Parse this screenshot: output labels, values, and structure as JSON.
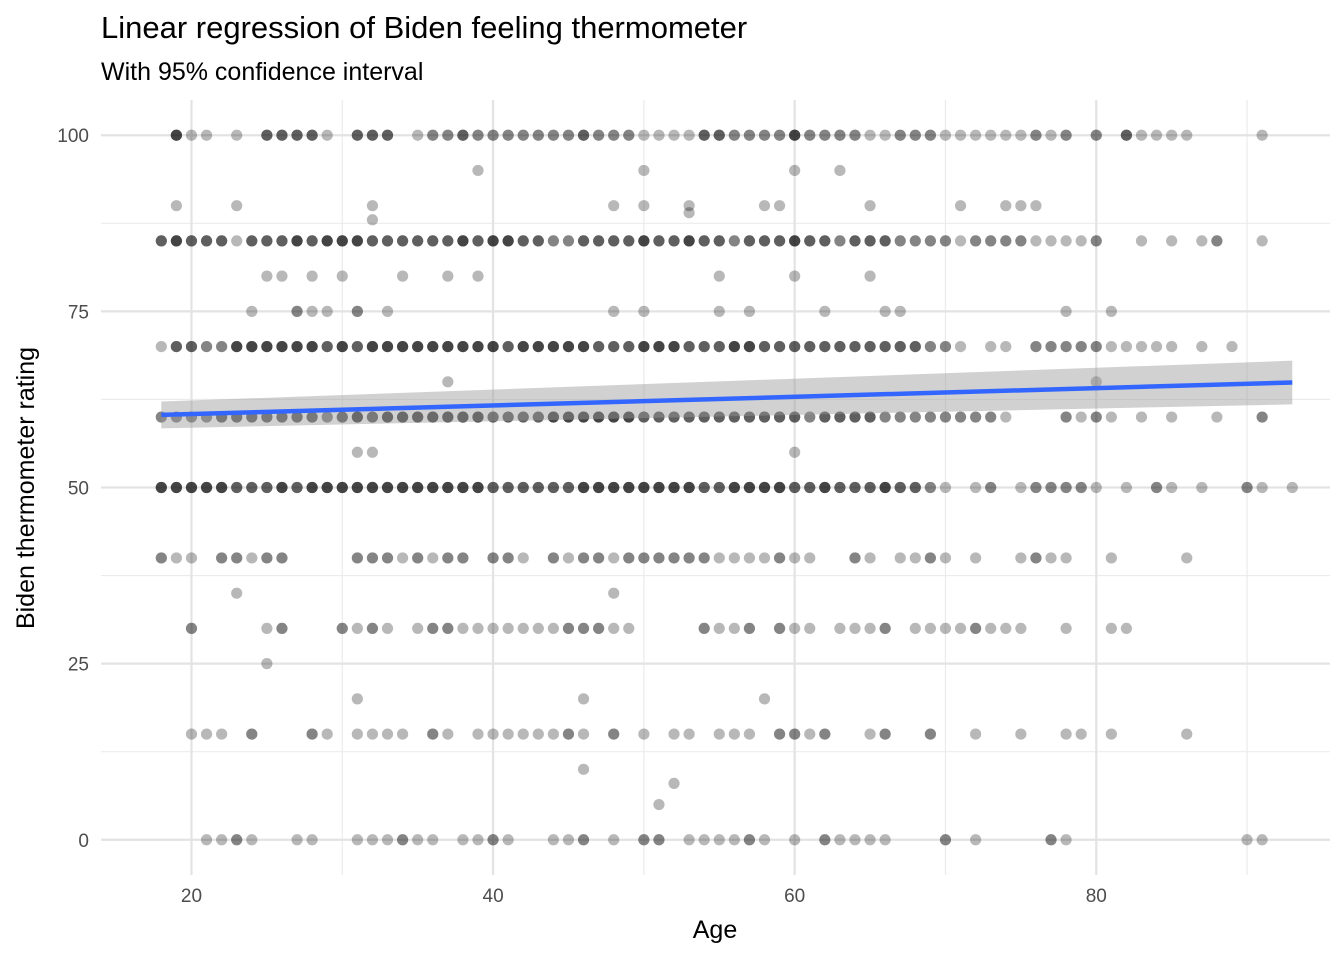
{
  "chart_data": {
    "type": "scatter",
    "title": "Linear regression of Biden feeling thermometer",
    "subtitle": "With 95% confidence interval",
    "xlabel": "Age",
    "ylabel": "Biden thermometer rating",
    "xlim": [
      14,
      95.5
    ],
    "ylim": [
      -5,
      105
    ],
    "x_ticks": [
      20,
      40,
      60,
      80
    ],
    "y_ticks": [
      0,
      25,
      50,
      75,
      100
    ],
    "grid": true,
    "point_color": "#000000",
    "point_alpha": 0.28,
    "points": [
      {
        "y": 100,
        "x": [
          19,
          19,
          19,
          19,
          20,
          21,
          23,
          25,
          25,
          25,
          26,
          26,
          26,
          27,
          27,
          27,
          28,
          28,
          28,
          29,
          31,
          31,
          31,
          32,
          32,
          32,
          33,
          33,
          33,
          35,
          36,
          36,
          37,
          37,
          38,
          38,
          38,
          39,
          39,
          40,
          40,
          41,
          41,
          42,
          42,
          43,
          43,
          44,
          44,
          45,
          45,
          46,
          46,
          46,
          47,
          47,
          48,
          48,
          49,
          49,
          50,
          51,
          52,
          53,
          54,
          54,
          54,
          55,
          55,
          55,
          56,
          56,
          57,
          57,
          58,
          58,
          59,
          59,
          60,
          60,
          60,
          60,
          61,
          61,
          62,
          62,
          63,
          63,
          64,
          64,
          65,
          66,
          67,
          67,
          68,
          68,
          69,
          69,
          70,
          71,
          72,
          73,
          74,
          75,
          76,
          76,
          77,
          78,
          78,
          80,
          80,
          82,
          82,
          82,
          83,
          84,
          85,
          86,
          91
        ]
      },
      {
        "y": 95,
        "x": [
          39,
          50,
          60,
          63
        ]
      },
      {
        "y": 90,
        "x": [
          19,
          23,
          32,
          48,
          50,
          53,
          58,
          59,
          65,
          71,
          74,
          75,
          76
        ]
      },
      {
        "y": 89,
        "x": [
          53
        ]
      },
      {
        "y": 88,
        "x": [
          32
        ]
      },
      {
        "y": 85,
        "x": [
          18,
          18,
          18,
          19,
          19,
          19,
          19,
          20,
          20,
          20,
          21,
          21,
          21,
          22,
          22,
          22,
          23,
          24,
          24,
          24,
          25,
          25,
          25,
          26,
          26,
          26,
          27,
          27,
          27,
          27,
          28,
          28,
          28,
          29,
          29,
          29,
          29,
          30,
          30,
          30,
          30,
          31,
          31,
          31,
          31,
          32,
          32,
          32,
          33,
          33,
          33,
          34,
          34,
          34,
          35,
          35,
          35,
          36,
          36,
          36,
          37,
          37,
          37,
          38,
          38,
          38,
          38,
          39,
          39,
          39,
          40,
          40,
          40,
          40,
          41,
          41,
          41,
          41,
          42,
          42,
          42,
          43,
          43,
          43,
          44,
          44,
          45,
          45,
          46,
          46,
          46,
          47,
          47,
          47,
          48,
          48,
          48,
          49,
          49,
          49,
          50,
          50,
          50,
          50,
          51,
          51,
          51,
          52,
          52,
          52,
          53,
          53,
          53,
          53,
          54,
          54,
          54,
          55,
          55,
          55,
          56,
          56,
          57,
          57,
          57,
          58,
          58,
          58,
          59,
          59,
          59,
          60,
          60,
          60,
          60,
          61,
          61,
          61,
          62,
          62,
          62,
          63,
          63,
          64,
          64,
          64,
          65,
          65,
          65,
          66,
          66,
          66,
          67,
          67,
          68,
          68,
          69,
          69,
          70,
          70,
          71,
          72,
          72,
          73,
          73,
          74,
          74,
          75,
          75,
          76,
          77,
          78,
          79,
          80,
          80,
          83,
          85,
          87,
          88,
          88,
          91
        ]
      },
      {
        "y": 80,
        "x": [
          25,
          26,
          28,
          30,
          34,
          37,
          39,
          55,
          60,
          65
        ]
      },
      {
        "y": 75,
        "x": [
          24,
          27,
          27,
          28,
          29,
          31,
          31,
          33,
          48,
          50,
          55,
          57,
          62,
          66,
          67,
          78,
          81
        ]
      },
      {
        "y": 70,
        "x": [
          18,
          19,
          19,
          19,
          20,
          20,
          20,
          21,
          21,
          22,
          22,
          23,
          23,
          23,
          23,
          24,
          24,
          24,
          24,
          25,
          25,
          25,
          25,
          26,
          26,
          26,
          26,
          27,
          27,
          27,
          27,
          28,
          28,
          28,
          28,
          29,
          29,
          29,
          30,
          30,
          30,
          30,
          31,
          31,
          31,
          32,
          32,
          32,
          32,
          33,
          33,
          33,
          33,
          34,
          34,
          34,
          34,
          35,
          35,
          35,
          35,
          36,
          36,
          36,
          36,
          37,
          37,
          37,
          37,
          38,
          38,
          38,
          38,
          39,
          39,
          39,
          39,
          40,
          40,
          40,
          40,
          41,
          41,
          41,
          42,
          42,
          42,
          42,
          43,
          43,
          43,
          43,
          44,
          44,
          44,
          44,
          45,
          45,
          45,
          45,
          46,
          46,
          46,
          46,
          47,
          47,
          47,
          48,
          48,
          48,
          49,
          49,
          49,
          50,
          50,
          50,
          50,
          51,
          51,
          51,
          51,
          52,
          52,
          52,
          52,
          53,
          53,
          53,
          54,
          54,
          54,
          55,
          55,
          55,
          56,
          56,
          56,
          56,
          57,
          57,
          57,
          57,
          58,
          58,
          58,
          59,
          59,
          59,
          60,
          60,
          60,
          61,
          61,
          61,
          62,
          62,
          62,
          63,
          63,
          63,
          64,
          64,
          64,
          65,
          65,
          65,
          66,
          66,
          66,
          67,
          67,
          67,
          68,
          68,
          68,
          69,
          69,
          70,
          70,
          71,
          73,
          74,
          76,
          76,
          77,
          77,
          78,
          78,
          79,
          79,
          80,
          80,
          81,
          82,
          83,
          84,
          85,
          87,
          89
        ]
      },
      {
        "y": 65,
        "x": [
          37,
          80
        ]
      },
      {
        "y": 60,
        "x": [
          18,
          18,
          19,
          19,
          20,
          20,
          21,
          21,
          22,
          22,
          22,
          23,
          23,
          23,
          24,
          24,
          24,
          25,
          25,
          25,
          26,
          26,
          26,
          27,
          27,
          27,
          28,
          28,
          28,
          29,
          29,
          30,
          30,
          30,
          31,
          31,
          31,
          31,
          32,
          32,
          32,
          33,
          33,
          33,
          33,
          34,
          34,
          34,
          34,
          35,
          35,
          35,
          35,
          36,
          36,
          36,
          36,
          37,
          37,
          37,
          37,
          38,
          38,
          38,
          38,
          39,
          39,
          39,
          39,
          40,
          40,
          40,
          41,
          41,
          41,
          42,
          42,
          42,
          43,
          43,
          43,
          44,
          44,
          44,
          44,
          45,
          45,
          45,
          45,
          46,
          46,
          46,
          46,
          47,
          47,
          47,
          47,
          48,
          48,
          48,
          48,
          49,
          49,
          49,
          49,
          50,
          50,
          50,
          51,
          51,
          51,
          52,
          52,
          52,
          53,
          53,
          53,
          54,
          54,
          54,
          55,
          55,
          55,
          56,
          56,
          56,
          57,
          57,
          57,
          58,
          58,
          58,
          59,
          59,
          59,
          60,
          60,
          60,
          61,
          61,
          62,
          62,
          62,
          63,
          63,
          63,
          64,
          64,
          64,
          65,
          65,
          65,
          66,
          66,
          67,
          67,
          68,
          68,
          69,
          69,
          70,
          70,
          71,
          71,
          72,
          72,
          73,
          73,
          74,
          78,
          78,
          79,
          80,
          80,
          81,
          83,
          85,
          88,
          91,
          91
        ]
      },
      {
        "y": 55,
        "x": [
          31,
          32,
          60
        ]
      },
      {
        "y": 50,
        "x": [
          18,
          18,
          18,
          18,
          19,
          19,
          19,
          19,
          20,
          20,
          20,
          20,
          21,
          21,
          21,
          21,
          22,
          22,
          22,
          22,
          23,
          23,
          23,
          24,
          24,
          24,
          25,
          25,
          25,
          26,
          26,
          26,
          26,
          27,
          27,
          27,
          28,
          28,
          28,
          28,
          29,
          29,
          29,
          29,
          30,
          30,
          30,
          30,
          31,
          31,
          31,
          31,
          32,
          32,
          32,
          32,
          33,
          33,
          33,
          33,
          34,
          34,
          34,
          34,
          35,
          35,
          35,
          35,
          36,
          36,
          36,
          36,
          37,
          37,
          37,
          37,
          38,
          38,
          38,
          38,
          39,
          39,
          39,
          39,
          40,
          40,
          40,
          41,
          41,
          41,
          42,
          42,
          42,
          43,
          43,
          43,
          44,
          44,
          44,
          45,
          45,
          45,
          46,
          46,
          46,
          46,
          47,
          47,
          47,
          47,
          48,
          48,
          48,
          48,
          49,
          49,
          49,
          49,
          50,
          50,
          50,
          50,
          51,
          51,
          51,
          51,
          52,
          52,
          52,
          52,
          53,
          53,
          53,
          53,
          54,
          54,
          54,
          55,
          55,
          55,
          56,
          56,
          56,
          56,
          57,
          57,
          57,
          57,
          58,
          58,
          58,
          58,
          59,
          59,
          59,
          59,
          60,
          60,
          60,
          61,
          61,
          61,
          62,
          62,
          62,
          62,
          63,
          63,
          63,
          64,
          64,
          64,
          65,
          65,
          65,
          66,
          66,
          66,
          66,
          67,
          67,
          67,
          68,
          68,
          68,
          69,
          69,
          70,
          72,
          73,
          73,
          75,
          76,
          76,
          77,
          77,
          78,
          78,
          79,
          79,
          80,
          82,
          84,
          84,
          85,
          87,
          90,
          90,
          91,
          93
        ]
      },
      {
        "y": 40,
        "x": [
          18,
          18,
          19,
          20,
          22,
          22,
          23,
          23,
          24,
          25,
          25,
          26,
          26,
          31,
          31,
          32,
          32,
          33,
          33,
          34,
          35,
          35,
          36,
          37,
          37,
          38,
          38,
          40,
          40,
          41,
          41,
          42,
          44,
          44,
          45,
          46,
          46,
          47,
          47,
          48,
          49,
          49,
          50,
          50,
          51,
          51,
          52,
          52,
          53,
          53,
          54,
          54,
          55,
          56,
          57,
          58,
          59,
          59,
          60,
          61,
          64,
          64,
          65,
          67,
          68,
          69,
          69,
          70,
          72,
          75,
          76,
          76,
          77,
          78,
          81,
          86
        ]
      },
      {
        "y": 35,
        "x": [
          23,
          48
        ]
      },
      {
        "y": 30,
        "x": [
          20,
          20,
          25,
          26,
          26,
          30,
          30,
          31,
          32,
          32,
          33,
          35,
          36,
          36,
          37,
          37,
          38,
          39,
          40,
          41,
          42,
          43,
          44,
          45,
          45,
          46,
          46,
          47,
          47,
          48,
          49,
          54,
          54,
          55,
          56,
          57,
          57,
          59,
          59,
          60,
          61,
          63,
          64,
          65,
          66,
          66,
          68,
          69,
          70,
          71,
          72,
          72,
          73,
          74,
          75,
          78,
          81,
          82
        ]
      },
      {
        "y": 25,
        "x": [
          25
        ]
      },
      {
        "y": 20,
        "x": [
          31,
          46,
          58
        ]
      },
      {
        "y": 15,
        "x": [
          20,
          21,
          22,
          24,
          24,
          28,
          28,
          29,
          31,
          32,
          33,
          34,
          36,
          36,
          37,
          39,
          40,
          41,
          42,
          43,
          44,
          45,
          45,
          46,
          48,
          48,
          50,
          52,
          53,
          55,
          56,
          57,
          59,
          59,
          60,
          60,
          61,
          62,
          62,
          65,
          66,
          66,
          69,
          69,
          72,
          75,
          78,
          79,
          81,
          86
        ]
      },
      {
        "y": 10,
        "x": [
          46
        ]
      },
      {
        "y": 8,
        "x": [
          52
        ]
      },
      {
        "y": 5,
        "x": [
          51
        ]
      },
      {
        "y": 0,
        "x": [
          21,
          22,
          23,
          23,
          24,
          27,
          28,
          31,
          32,
          33,
          34,
          34,
          35,
          36,
          38,
          39,
          40,
          40,
          41,
          44,
          45,
          46,
          46,
          48,
          50,
          50,
          51,
          51,
          53,
          54,
          55,
          56,
          57,
          57,
          58,
          60,
          62,
          62,
          63,
          64,
          65,
          66,
          70,
          70,
          72,
          77,
          77,
          78,
          90,
          91
        ]
      }
    ],
    "regression": {
      "color": "#3366ff",
      "band_color": "#999999",
      "x": [
        18,
        93
      ],
      "fit": [
        60.3,
        64.9
      ],
      "lower": [
        58.4,
        61.8
      ],
      "upper": [
        62.2,
        68.0
      ]
    }
  }
}
